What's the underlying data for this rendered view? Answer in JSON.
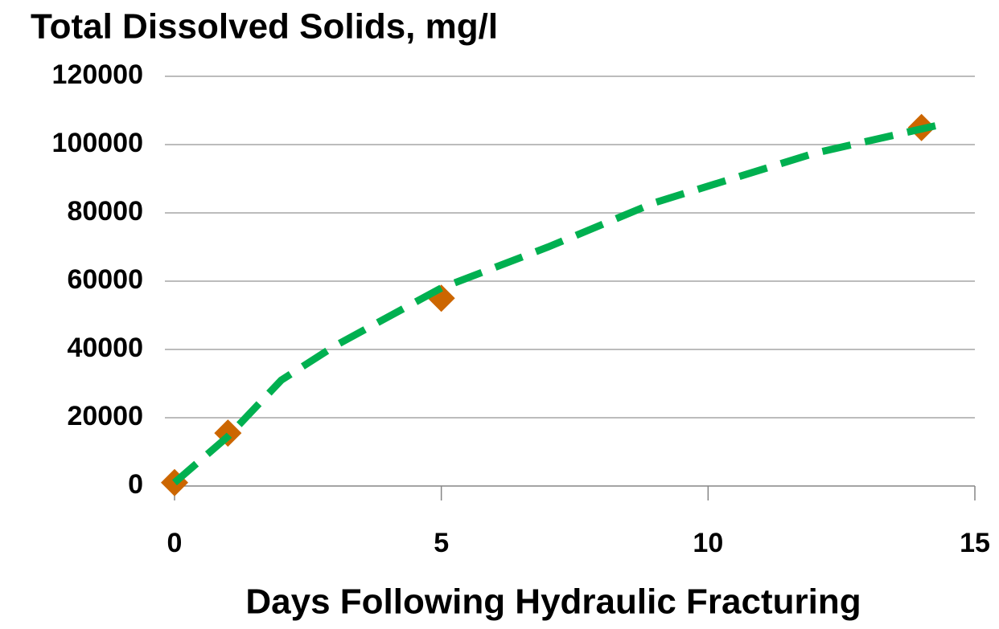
{
  "chart_data": {
    "type": "scatter",
    "title": "Total Dissolved Solids, mg/l",
    "xlabel": "Days Following Hydraulic Fracturing",
    "xlim": [
      0,
      15
    ],
    "xticks": [
      0,
      5,
      10,
      15
    ],
    "ylim": [
      0,
      120000
    ],
    "yticks": [
      0,
      20000,
      40000,
      60000,
      80000,
      100000,
      120000
    ],
    "grid": true,
    "series": [
      {
        "color": "#cc6600",
        "marker": "diamond",
        "x": [
          0,
          1,
          5,
          14
        ],
        "values": [
          1000,
          15500,
          55000,
          105000
        ]
      },
      {
        "color": "#00b050",
        "line": "dashed",
        "x": [
          0,
          1,
          2,
          3,
          5,
          7,
          9,
          12,
          14.4
        ],
        "values": [
          1000,
          14500,
          31000,
          41000,
          58000,
          70000,
          83000,
          97500,
          106000
        ]
      }
    ]
  }
}
